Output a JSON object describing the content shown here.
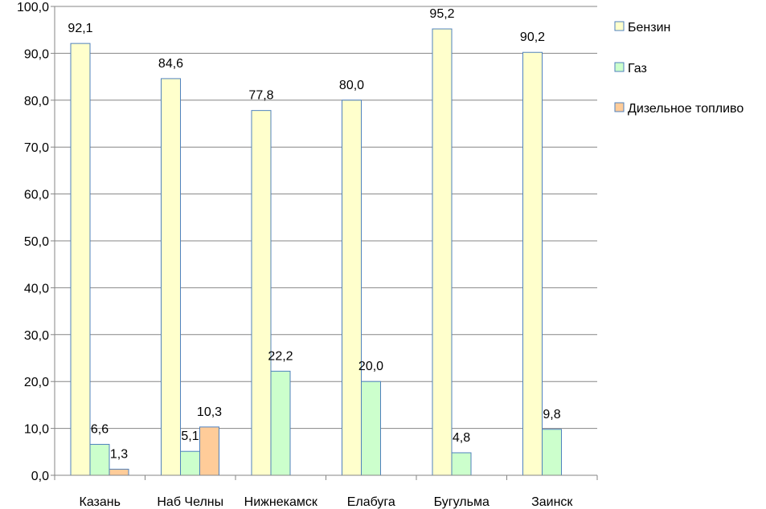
{
  "chart_data": {
    "type": "bar",
    "categories": [
      "Казань",
      "Наб Челны",
      "Нижнекамск",
      "Елабуга",
      "Бугульма",
      "Заинск"
    ],
    "series": [
      {
        "name": "Бензин",
        "values": [
          92.1,
          84.6,
          77.8,
          80.0,
          95.2,
          90.2
        ],
        "labels": [
          "92,1",
          "84,6",
          "77,8",
          "80,0",
          "95,2",
          "90,2"
        ],
        "color": "#FFFFCC"
      },
      {
        "name": "Газ",
        "values": [
          6.6,
          5.1,
          22.2,
          20.0,
          4.8,
          9.8
        ],
        "labels": [
          "6,6",
          "5,1",
          "22,2",
          "20,0",
          "4,8",
          "9,8"
        ],
        "color": "#CCFFCC"
      },
      {
        "name": "Дизельное топливо",
        "values": [
          1.3,
          10.3,
          null,
          null,
          null,
          null
        ],
        "labels": [
          "1,3",
          "10,3",
          "",
          "",
          "",
          ""
        ],
        "color": "#FFCC99"
      }
    ],
    "ylim": [
      0,
      100
    ],
    "yticks": [
      "0,0",
      "10,0",
      "20,0",
      "30,0",
      "40,0",
      "50,0",
      "60,0",
      "70,0",
      "80,0",
      "90,0",
      "100,0"
    ],
    "grid": true,
    "legend": "right",
    "bar_border_color": "#4F81BD"
  }
}
